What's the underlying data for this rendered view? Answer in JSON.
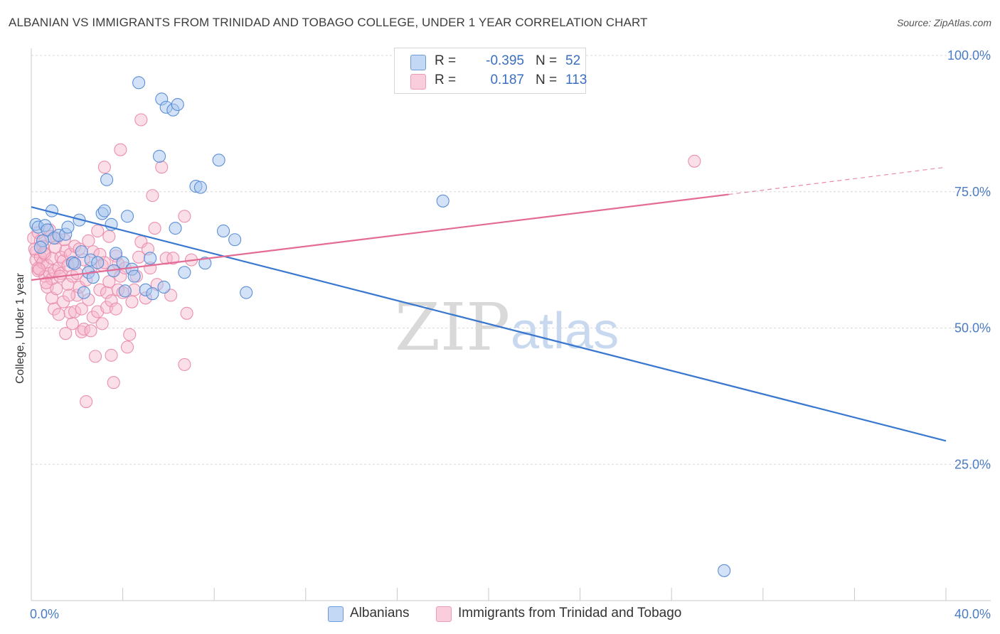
{
  "title": "ALBANIAN VS IMMIGRANTS FROM TRINIDAD AND TOBAGO COLLEGE, UNDER 1 YEAR CORRELATION CHART",
  "source": "Source: ZipAtlas.com",
  "watermark": {
    "zip": "ZIP",
    "atlas": "atlas"
  },
  "legend": {
    "r_label": "R =",
    "n_label": "N =",
    "rows": [
      {
        "r": "-0.395",
        "n": "52"
      },
      {
        "r": "0.187",
        "n": "113"
      }
    ]
  },
  "bottom_legend": [
    "Albanians",
    "Immigrants from Trinidad and Tobago"
  ],
  "colors": {
    "blue_fill": "#a8c6ee",
    "blue_stroke": "#5b8fd6",
    "blue_line": "#3a78d0",
    "pink_fill": "#f6b8cc",
    "pink_stroke": "#ea8fae",
    "pink_line": "#e36b95",
    "tick_text": "#4a7cc4",
    "grid": "#d8d8d8"
  },
  "chart_data": {
    "type": "scatter",
    "title": "ALBANIAN VS IMMIGRANTS FROM TRINIDAD AND TOBAGO COLLEGE, UNDER 1 YEAR CORRELATION CHART",
    "xlabel": "",
    "ylabel": "College, Under 1 year",
    "xlim": [
      0,
      40
    ],
    "ylim": [
      0,
      100
    ],
    "x_tick_labels": [
      "0.0%",
      "40.0%"
    ],
    "y_tick_labels": [
      "100.0%",
      "75.0%",
      "50.0%",
      "25.0%"
    ],
    "y_ticks": [
      100,
      75,
      50,
      25
    ],
    "grid": true,
    "legend_position": "top-center",
    "series": [
      {
        "name": "Albanians",
        "r": -0.395,
        "n": 52,
        "trend": {
          "x": [
            0,
            40
          ],
          "y": [
            72.2,
            29.3
          ]
        },
        "points": [
          [
            0.2,
            69.0
          ],
          [
            0.3,
            68.5
          ],
          [
            0.5,
            66.0
          ],
          [
            0.6,
            68.8
          ],
          [
            0.7,
            68.0
          ],
          [
            0.9,
            71.5
          ],
          [
            1.0,
            66.5
          ],
          [
            1.2,
            67.0
          ],
          [
            1.5,
            67.2
          ],
          [
            1.6,
            68.5
          ],
          [
            1.8,
            62.0
          ],
          [
            2.1,
            69.8
          ],
          [
            2.3,
            56.5
          ],
          [
            2.5,
            60.2
          ],
          [
            2.6,
            62.5
          ],
          [
            2.7,
            59.3
          ],
          [
            2.9,
            62.0
          ],
          [
            3.1,
            71.0
          ],
          [
            3.2,
            71.5
          ],
          [
            3.3,
            77.2
          ],
          [
            3.5,
            69.0
          ],
          [
            3.6,
            60.5
          ],
          [
            3.7,
            63.7
          ],
          [
            4.0,
            62.0
          ],
          [
            4.1,
            56.8
          ],
          [
            4.2,
            70.5
          ],
          [
            4.4,
            60.8
          ],
          [
            4.5,
            59.5
          ],
          [
            4.7,
            95.0
          ],
          [
            5.0,
            57.0
          ],
          [
            5.2,
            62.8
          ],
          [
            5.3,
            56.3
          ],
          [
            5.6,
            81.5
          ],
          [
            5.7,
            92.0
          ],
          [
            5.8,
            57.5
          ],
          [
            5.9,
            90.5
          ],
          [
            6.2,
            90.0
          ],
          [
            6.4,
            91.0
          ],
          [
            6.3,
            68.3
          ],
          [
            6.7,
            60.2
          ],
          [
            7.2,
            76.0
          ],
          [
            7.4,
            75.8
          ],
          [
            7.6,
            61.9
          ],
          [
            8.2,
            80.8
          ],
          [
            8.4,
            67.8
          ],
          [
            8.9,
            66.2
          ],
          [
            9.4,
            56.5
          ],
          [
            18.0,
            73.3
          ],
          [
            30.3,
            5.5
          ],
          [
            0.4,
            64.8
          ],
          [
            1.9,
            61.8
          ],
          [
            2.2,
            64.0
          ]
        ]
      },
      {
        "name": "Immigrants from Trinidad and Tobago",
        "r": 0.187,
        "n": 113,
        "trend": {
          "x": [
            0,
            30.5
          ],
          "y": [
            58.8,
            74.5
          ]
        },
        "trend_dashed": {
          "x": [
            30.5,
            40
          ],
          "y": [
            74.5,
            79.5
          ]
        },
        "points": [
          [
            0.1,
            66.5
          ],
          [
            0.2,
            64.0
          ],
          [
            0.2,
            62.5
          ],
          [
            0.3,
            67.5
          ],
          [
            0.3,
            61.0
          ],
          [
            0.3,
            60.5
          ],
          [
            0.4,
            63.0
          ],
          [
            0.4,
            66.0
          ],
          [
            0.5,
            65.0
          ],
          [
            0.5,
            62.0
          ],
          [
            0.6,
            63.5
          ],
          [
            0.6,
            59.5
          ],
          [
            0.7,
            61.5
          ],
          [
            0.7,
            57.5
          ],
          [
            0.8,
            60.0
          ],
          [
            0.8,
            68.0
          ],
          [
            0.9,
            62.8
          ],
          [
            0.9,
            55.5
          ],
          [
            0.9,
            59.0
          ],
          [
            1.0,
            53.5
          ],
          [
            1.0,
            60.5
          ],
          [
            1.1,
            66.5
          ],
          [
            1.1,
            57.2
          ],
          [
            1.2,
            52.5
          ],
          [
            1.2,
            61.0
          ],
          [
            1.3,
            63.0
          ],
          [
            1.3,
            60.0
          ],
          [
            1.4,
            54.8
          ],
          [
            1.4,
            62.3
          ],
          [
            1.5,
            49.0
          ],
          [
            1.5,
            64.2
          ],
          [
            1.6,
            58.0
          ],
          [
            1.6,
            61.5
          ],
          [
            1.7,
            52.8
          ],
          [
            1.7,
            63.5
          ],
          [
            1.8,
            50.8
          ],
          [
            1.8,
            59.5
          ],
          [
            1.9,
            65.0
          ],
          [
            1.9,
            53.0
          ],
          [
            2.0,
            60.0
          ],
          [
            2.0,
            56.0
          ],
          [
            2.1,
            64.5
          ],
          [
            2.1,
            57.5
          ],
          [
            2.2,
            49.3
          ],
          [
            2.2,
            53.5
          ],
          [
            2.3,
            62.5
          ],
          [
            2.3,
            49.8
          ],
          [
            2.4,
            58.8
          ],
          [
            2.4,
            36.5
          ],
          [
            2.5,
            66.0
          ],
          [
            2.5,
            55.2
          ],
          [
            2.6,
            61.0
          ],
          [
            2.6,
            49.5
          ],
          [
            2.7,
            52.0
          ],
          [
            2.7,
            64.0
          ],
          [
            2.8,
            44.8
          ],
          [
            2.9,
            67.8
          ],
          [
            2.9,
            53.0
          ],
          [
            3.0,
            63.5
          ],
          [
            3.0,
            57.0
          ],
          [
            3.1,
            61.5
          ],
          [
            3.1,
            50.8
          ],
          [
            3.2,
            79.5
          ],
          [
            3.2,
            62.0
          ],
          [
            3.3,
            56.5
          ],
          [
            3.3,
            53.8
          ],
          [
            3.4,
            66.8
          ],
          [
            3.4,
            58.5
          ],
          [
            3.5,
            45.0
          ],
          [
            3.5,
            55.0
          ],
          [
            3.6,
            40.0
          ],
          [
            3.6,
            60.5
          ],
          [
            3.7,
            63.2
          ],
          [
            3.7,
            53.5
          ],
          [
            3.8,
            61.8
          ],
          [
            3.8,
            57.0
          ],
          [
            3.9,
            82.7
          ],
          [
            3.9,
            59.5
          ],
          [
            4.0,
            56.5
          ],
          [
            4.1,
            61.0
          ],
          [
            4.2,
            46.5
          ],
          [
            4.3,
            48.8
          ],
          [
            4.4,
            54.8
          ],
          [
            4.5,
            57.0
          ],
          [
            4.6,
            59.5
          ],
          [
            4.7,
            63.0
          ],
          [
            4.8,
            88.2
          ],
          [
            4.8,
            65.8
          ],
          [
            5.0,
            55.5
          ],
          [
            5.1,
            64.5
          ],
          [
            5.2,
            61.0
          ],
          [
            5.3,
            74.3
          ],
          [
            5.4,
            68.3
          ],
          [
            5.5,
            58.0
          ],
          [
            5.7,
            79.5
          ],
          [
            5.9,
            62.8
          ],
          [
            6.1,
            56.0
          ],
          [
            6.2,
            62.8
          ],
          [
            6.7,
            70.5
          ],
          [
            6.7,
            43.3
          ],
          [
            6.8,
            52.7
          ],
          [
            7.0,
            62.5
          ],
          [
            29.0,
            80.6
          ],
          [
            0.15,
            64.5
          ],
          [
            0.35,
            60.8
          ],
          [
            0.55,
            63.8
          ],
          [
            0.65,
            58.3
          ],
          [
            0.85,
            66.8
          ],
          [
            1.05,
            64.8
          ],
          [
            1.25,
            59.5
          ],
          [
            1.45,
            66.2
          ],
          [
            1.65,
            56.0
          ],
          [
            1.85,
            62.0
          ]
        ]
      }
    ]
  }
}
